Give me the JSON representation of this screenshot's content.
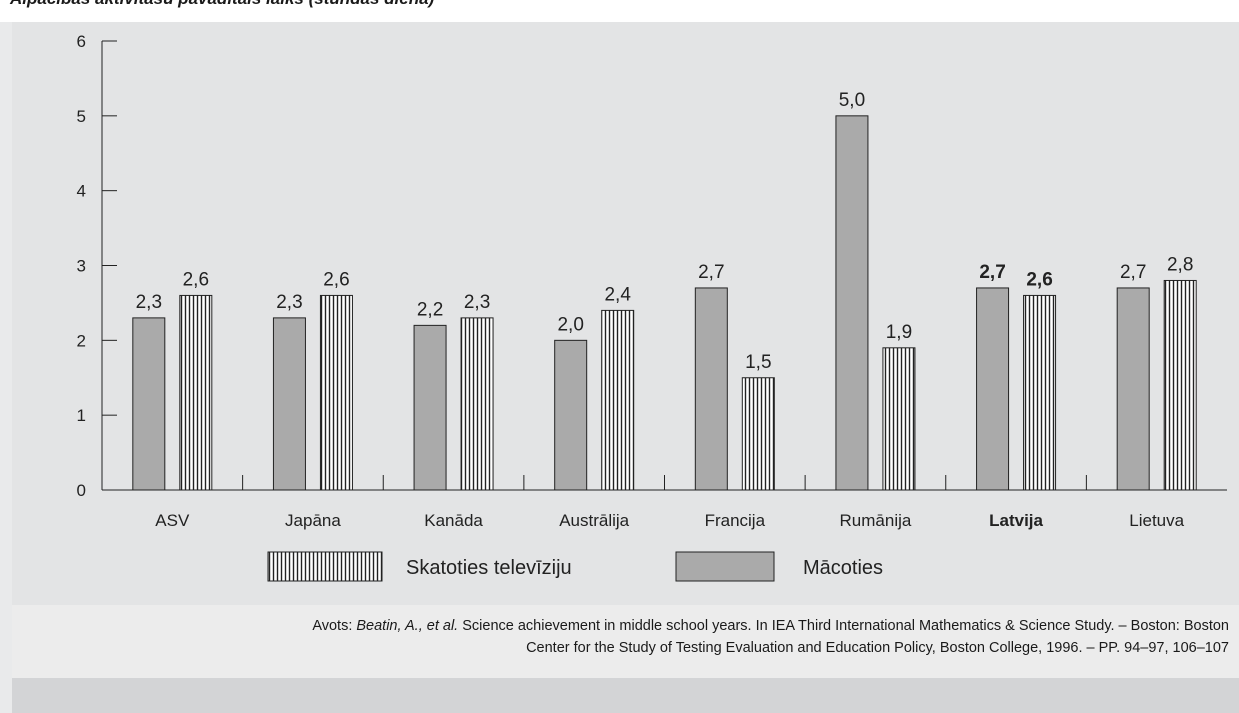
{
  "title": "Alpācības aktivitāšu pavadītais laiks (stundas dienā)",
  "colors": {
    "macoties_fill": "#aaaaaa",
    "stripe_bg": "#ffffff",
    "stripe_line": "#222222",
    "axis": "#222222"
  },
  "legend": {
    "items": [
      {
        "label": "Skatoties televīziju",
        "style": "striped"
      },
      {
        "label": "Mācoties",
        "style": "solid"
      }
    ]
  },
  "source": {
    "prefix": "Avots: ",
    "authors": "Beatin, A., et al.",
    "line1_rest": " Science achievement in middle school years. In IEA Third International Mathematics & Science Study. – Boston: Boston",
    "line2": "Center for the Study of Testing Evaluation and Education Policy, Boston College, 1996. – PP. 94–97, 106–107"
  },
  "chart_data": {
    "type": "bar",
    "categories": [
      "ASV",
      "Japāna",
      "Kanāda",
      "Austrālija",
      "Francija",
      "Rumānija",
      "Latvija",
      "Lietuva"
    ],
    "bold_categories": [
      "Latvija"
    ],
    "series": [
      {
        "name": "Mācoties",
        "values": [
          2.3,
          2.3,
          2.2,
          2.0,
          2.7,
          5.0,
          2.7,
          2.7
        ],
        "labels": [
          "2,3",
          "2,3",
          "2,2",
          "2,0",
          "2,7",
          "5,0",
          "2,7",
          "2,7"
        ]
      },
      {
        "name": "Skatoties televīziju",
        "values": [
          2.6,
          2.6,
          2.3,
          2.4,
          1.5,
          1.9,
          2.6,
          2.8
        ],
        "labels": [
          "2,6",
          "2,6",
          "2,3",
          "2,4",
          "1,5",
          "1,9",
          "2,6",
          "2,8"
        ]
      }
    ],
    "ylim": [
      0,
      6
    ],
    "yticks": [
      0,
      1,
      2,
      3,
      4,
      5,
      6
    ],
    "grid": false,
    "legend_position": "bottom"
  }
}
